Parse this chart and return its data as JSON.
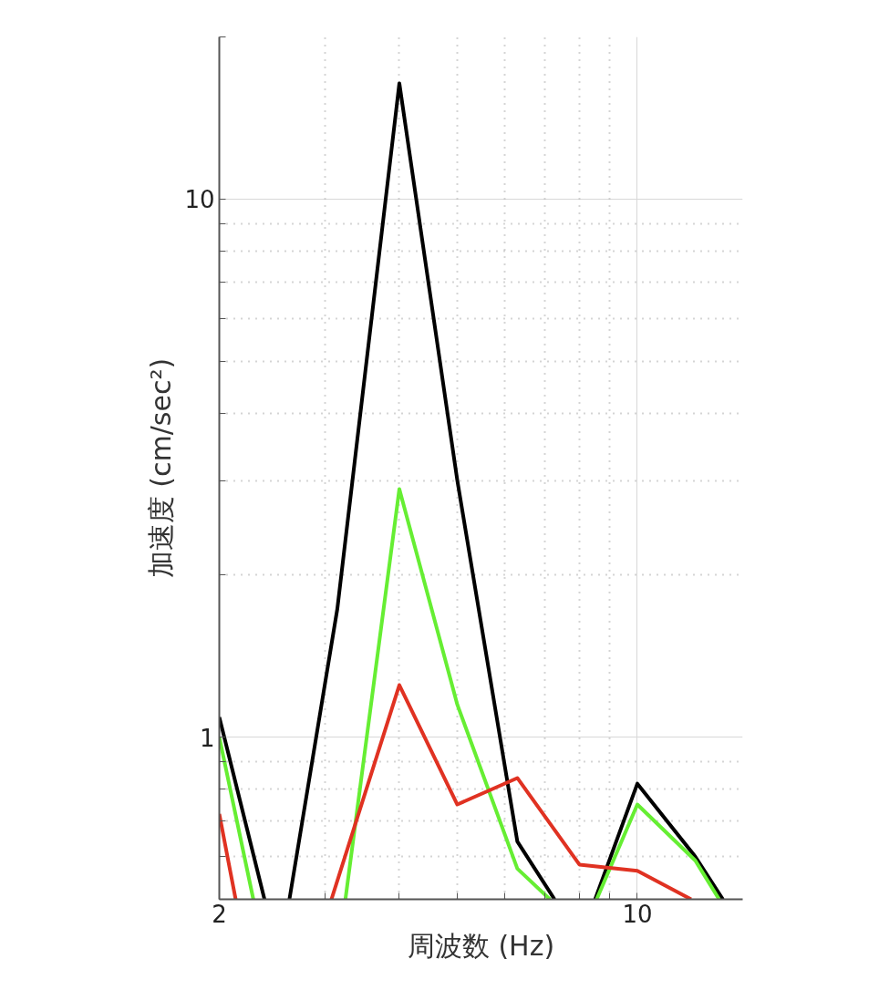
{
  "chart_data": {
    "type": "line",
    "xlabel": "周波数 (Hz)",
    "ylabel": "加速度 (cm/sec²)",
    "series": [
      {
        "color": "#000000",
        "x": [
          2,
          2.38,
          2.5,
          2.62,
          3.15,
          4,
          5,
          6.3,
          7.27,
          8,
          8.5,
          10,
          12.5,
          13.9
        ],
        "values": [
          1.09,
          0.5,
          null,
          0.5,
          1.73,
          16.4,
          3.0,
          0.64,
          0.5,
          null,
          0.5,
          0.82,
          0.6,
          0.5
        ]
      },
      {
        "color": "#66ee33",
        "x": [
          2,
          2.28,
          2.5,
          3.25,
          4,
          5,
          6.3,
          7.14,
          8,
          8.55,
          10,
          12.5,
          13.7
        ],
        "values": [
          1.0,
          0.5,
          null,
          0.5,
          2.89,
          1.15,
          0.57,
          0.5,
          null,
          0.5,
          0.75,
          0.59,
          0.5
        ]
      },
      {
        "color": "#e03222",
        "x": [
          2,
          2.13,
          2.5,
          3.08,
          4,
          5,
          6.3,
          8,
          10,
          12.3
        ],
        "values": [
          0.72,
          0.5,
          null,
          0.5,
          1.25,
          0.75,
          0.84,
          0.58,
          0.565,
          0.5
        ]
      }
    ],
    "log": "xy",
    "xlim": [
      2,
      15
    ],
    "ylim": [
      0.5,
      20
    ],
    "xticks": [
      2,
      {
        "value": 3,
        "label": null
      },
      {
        "value": 4,
        "label": null
      },
      {
        "value": 5,
        "label": null
      },
      {
        "value": 6,
        "label": null
      },
      {
        "value": 7,
        "label": null
      },
      {
        "value": 8,
        "label": null
      },
      {
        "value": 9,
        "label": null
      },
      10
    ],
    "yticks": [
      {
        "value": 0.5,
        "label": null
      },
      {
        "value": 0.6,
        "label": null
      },
      {
        "value": 0.7,
        "label": null
      },
      {
        "value": 0.8,
        "label": null
      },
      {
        "value": 0.9,
        "label": null
      },
      1,
      {
        "value": 2,
        "label": null
      },
      {
        "value": 3,
        "label": null
      },
      {
        "value": 4,
        "label": null
      },
      {
        "value": 5,
        "label": null
      },
      {
        "value": 6,
        "label": null
      },
      {
        "value": 7,
        "label": null
      },
      {
        "value": 8,
        "label": null
      },
      {
        "value": 9,
        "label": null
      },
      10,
      {
        "value": 20,
        "label": null
      }
    ],
    "grid": true,
    "marker": "none",
    "line_style": "solid"
  }
}
